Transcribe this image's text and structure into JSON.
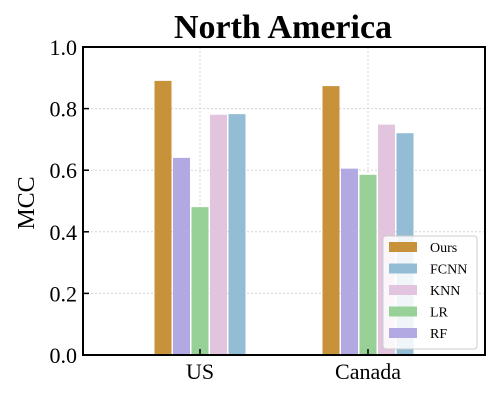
{
  "chart_data": {
    "type": "bar",
    "title": "North America",
    "xlabel": "",
    "ylabel": "MCC",
    "ylim": [
      0,
      1.0
    ],
    "yticks": [
      "0.0",
      "0.2",
      "0.4",
      "0.6",
      "0.8",
      "1.0"
    ],
    "categories": [
      "US",
      "Canada"
    ],
    "grid": true,
    "legend_position": "bottom-right",
    "bar_order": [
      "Ours",
      "RF",
      "LR",
      "KNN",
      "FCNN"
    ],
    "series": [
      {
        "name": "Ours",
        "color": "#C8923A",
        "values": [
          0.89,
          0.873
        ]
      },
      {
        "name": "RF",
        "color": "#B2A8E2",
        "values": [
          0.64,
          0.605
        ]
      },
      {
        "name": "LR",
        "color": "#98D198",
        "values": [
          0.48,
          0.585
        ]
      },
      {
        "name": "KNN",
        "color": "#E2C4DE",
        "values": [
          0.78,
          0.748
        ]
      },
      {
        "name": "FCNN",
        "color": "#93BDD4",
        "values": [
          0.782,
          0.72
        ]
      }
    ],
    "legend": [
      "Ours",
      "FCNN",
      "KNN",
      "LR",
      "RF"
    ]
  }
}
